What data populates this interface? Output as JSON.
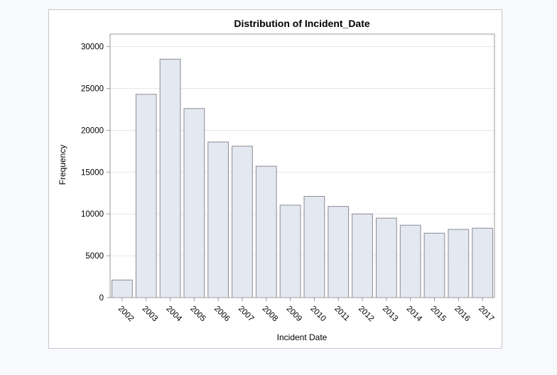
{
  "chart_data": {
    "type": "bar",
    "title": "Distribution of Incident_Date",
    "xlabel": "Incident Date",
    "ylabel": "Frequency",
    "categories": [
      "2002",
      "2003",
      "2004",
      "2005",
      "2006",
      "2007",
      "2008",
      "2009",
      "2010",
      "2011",
      "2012",
      "2013",
      "2014",
      "2015",
      "2016",
      "2017"
    ],
    "values": [
      2100,
      24300,
      28500,
      22600,
      18600,
      18100,
      15700,
      11050,
      12100,
      10900,
      10000,
      9500,
      8650,
      7700,
      8150,
      8300
    ],
    "ylim": [
      0,
      31500
    ],
    "yticks": [
      0,
      5000,
      10000,
      15000,
      20000,
      25000,
      30000
    ],
    "grid": true,
    "legend": "none",
    "colors": {
      "bar_fill": "#e3e8f1",
      "bar_stroke": "#8c8c94",
      "grid": "#e6e6e6",
      "axis": "#9a9a9a",
      "background": "#f7f9fd"
    }
  }
}
